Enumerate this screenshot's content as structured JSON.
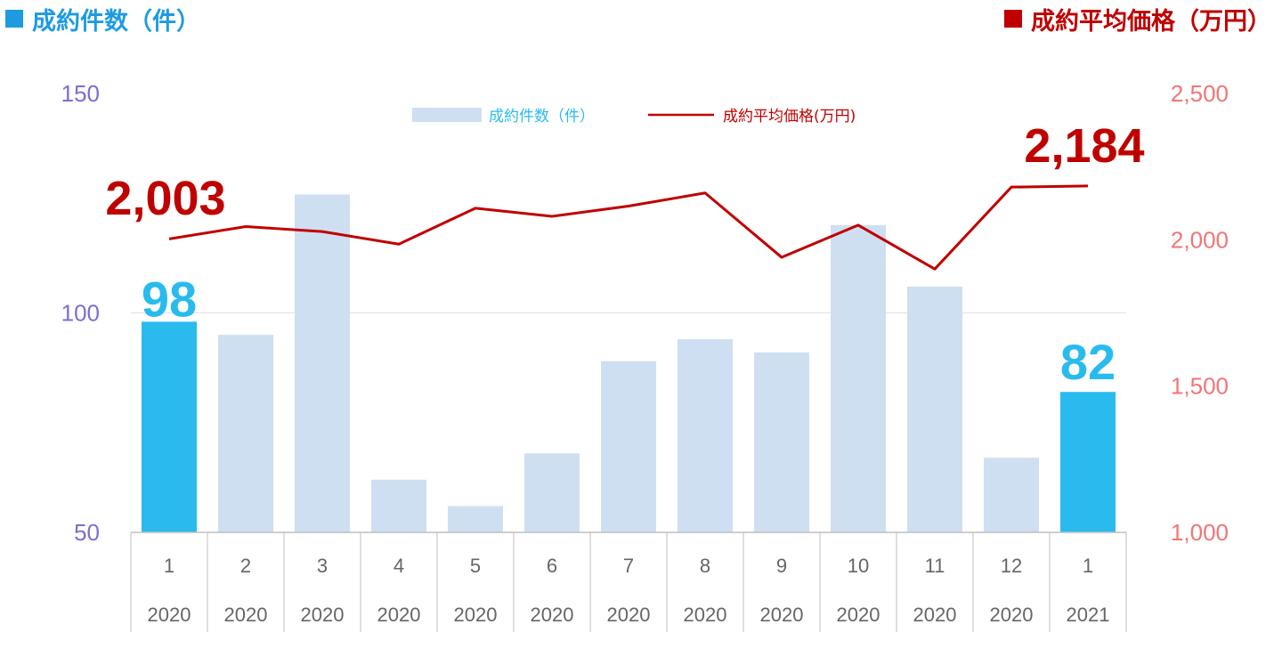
{
  "header": {
    "left_title": "成約件数（件）",
    "right_title": "成約平均価格（万円）",
    "left_color": "#1e9be0",
    "right_color": "#c00000"
  },
  "chart_data": {
    "type": "bar",
    "categories": [
      "1",
      "2",
      "3",
      "4",
      "5",
      "6",
      "7",
      "8",
      "9",
      "10",
      "11",
      "12",
      "1"
    ],
    "years": [
      "2020",
      "2020",
      "2020",
      "2020",
      "2020",
      "2020",
      "2020",
      "2020",
      "2020",
      "2020",
      "2020",
      "2020",
      "2021"
    ],
    "series": [
      {
        "name": "成約件数（件）",
        "type": "bar",
        "axis": "left",
        "values": [
          98,
          95,
          127,
          62,
          56,
          68,
          89,
          94,
          91,
          120,
          106,
          67,
          82
        ],
        "highlight": [
          0,
          12
        ],
        "color": "#cfdff2",
        "highlight_color": "#29bbee"
      },
      {
        "name": "成約平均価格(万円)",
        "type": "line",
        "axis": "right",
        "values": [
          2003,
          2045,
          2028,
          1985,
          2108,
          2080,
          2115,
          2160,
          1940,
          2050,
          1900,
          2180,
          2184
        ],
        "color": "#c00000"
      }
    ],
    "left_axis": {
      "ylim": [
        50,
        150
      ],
      "ticks": [
        "50",
        "100",
        "150"
      ]
    },
    "right_axis": {
      "ylim": [
        1000,
        2500
      ],
      "ticks": [
        "1,000",
        "1,500",
        "2,000",
        "2,500"
      ]
    },
    "annotations": {
      "bar_first": "98",
      "bar_last": "82",
      "line_first": "2,003",
      "line_last": "2,184"
    },
    "legend_position": "top-center",
    "gridlines": true
  }
}
